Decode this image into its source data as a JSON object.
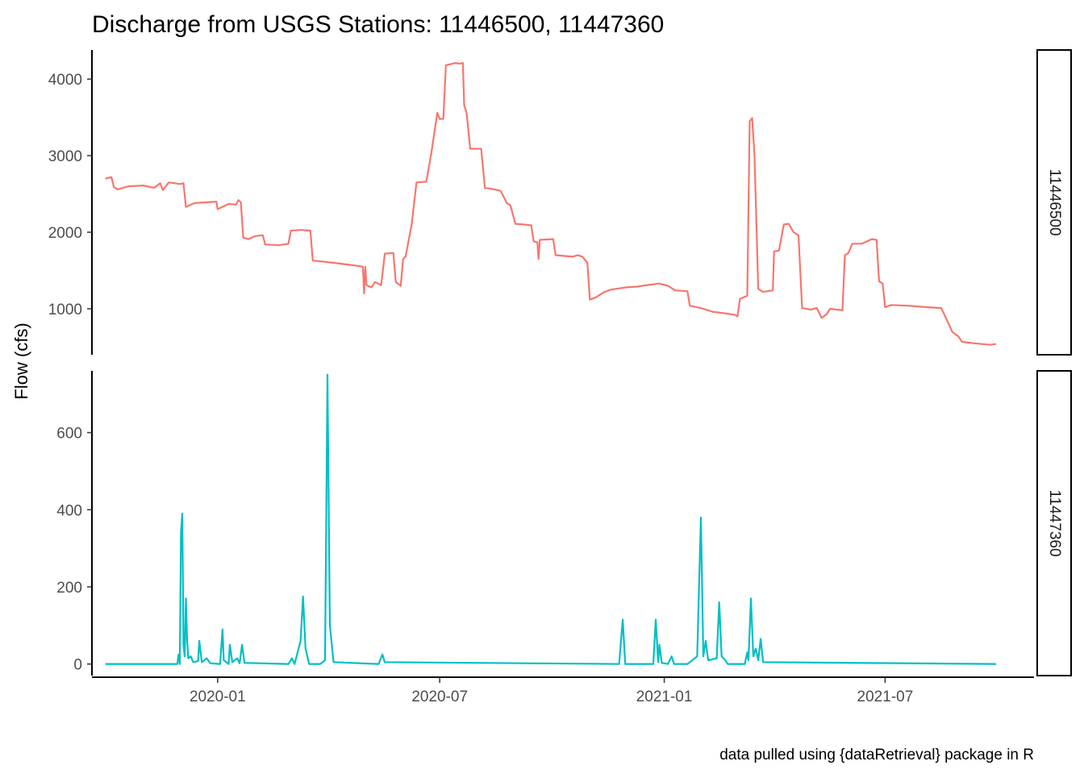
{
  "chart_data": {
    "type": "line",
    "title": "Discharge from USGS Stations: 11446500, 11447360",
    "ylabel": "Flow (cfs)",
    "xlabel": "",
    "caption": "data pulled using {dataRetrieval} package in R",
    "grid": false,
    "legend": "none",
    "x_ticks": [
      "2020-01",
      "2020-07",
      "2021-01",
      "2021-07"
    ],
    "x_range": [
      "2019-09-20",
      "2021-10-31"
    ],
    "panels": [
      {
        "strip": "11446500",
        "color": "#F8766D",
        "ylim": [
          400,
          4380
        ],
        "y_ticks": [
          1000,
          2000,
          3000,
          4000
        ],
        "points": [
          [
            "2019-10-01",
            2700
          ],
          [
            "2019-10-06",
            2720
          ],
          [
            "2019-10-08",
            2590
          ],
          [
            "2019-10-11",
            2560
          ],
          [
            "2019-10-20",
            2600
          ],
          [
            "2019-11-01",
            2610
          ],
          [
            "2019-11-10",
            2580
          ],
          [
            "2019-11-15",
            2640
          ],
          [
            "2019-11-17",
            2550
          ],
          [
            "2019-11-22",
            2650
          ],
          [
            "2019-12-01",
            2630
          ],
          [
            "2019-12-04",
            2640
          ],
          [
            "2019-12-06",
            2330
          ],
          [
            "2019-12-13",
            2380
          ],
          [
            "2019-12-22",
            2390
          ],
          [
            "2019-12-31",
            2400
          ],
          [
            "2020-01-01",
            2300
          ],
          [
            "2020-01-10",
            2370
          ],
          [
            "2020-01-16",
            2360
          ],
          [
            "2020-01-18",
            2420
          ],
          [
            "2020-01-20",
            2390
          ],
          [
            "2020-01-22",
            1930
          ],
          [
            "2020-01-26",
            1910
          ],
          [
            "2020-02-01",
            1950
          ],
          [
            "2020-02-07",
            1960
          ],
          [
            "2020-02-09",
            1840
          ],
          [
            "2020-02-20",
            1830
          ],
          [
            "2020-02-28",
            1850
          ],
          [
            "2020-03-01",
            2020
          ],
          [
            "2020-03-10",
            2030
          ],
          [
            "2020-03-17",
            2020
          ],
          [
            "2020-03-19",
            1630
          ],
          [
            "2020-03-25",
            1620
          ],
          [
            "2020-04-05",
            1600
          ],
          [
            "2020-04-15",
            1580
          ],
          [
            "2020-04-25",
            1560
          ],
          [
            "2020-04-29",
            1550
          ],
          [
            "2020-04-30",
            1200
          ],
          [
            "2020-05-01",
            1550
          ],
          [
            "2020-05-02",
            1310
          ],
          [
            "2020-05-06",
            1280
          ],
          [
            "2020-05-09",
            1350
          ],
          [
            "2020-05-14",
            1310
          ],
          [
            "2020-05-17",
            1720
          ],
          [
            "2020-05-24",
            1730
          ],
          [
            "2020-05-26",
            1350
          ],
          [
            "2020-05-30",
            1300
          ],
          [
            "2020-06-01",
            1650
          ],
          [
            "2020-06-03",
            1680
          ],
          [
            "2020-06-08",
            2100
          ],
          [
            "2020-06-12",
            2650
          ],
          [
            "2020-06-20",
            2660
          ],
          [
            "2020-06-24",
            3020
          ],
          [
            "2020-06-29",
            3560
          ],
          [
            "2020-07-01",
            3480
          ],
          [
            "2020-07-04",
            3480
          ],
          [
            "2020-07-06",
            4180
          ],
          [
            "2020-07-14",
            4210
          ],
          [
            "2020-07-17",
            4200
          ],
          [
            "2020-07-20",
            4210
          ],
          [
            "2020-07-21",
            3660
          ],
          [
            "2020-07-23",
            3560
          ],
          [
            "2020-07-26",
            3090
          ],
          [
            "2020-08-04",
            3090
          ],
          [
            "2020-08-07",
            2580
          ],
          [
            "2020-08-15",
            2560
          ],
          [
            "2020-08-20",
            2540
          ],
          [
            "2020-08-25",
            2380
          ],
          [
            "2020-08-28",
            2350
          ],
          [
            "2020-09-01",
            2110
          ],
          [
            "2020-09-08",
            2100
          ],
          [
            "2020-09-14",
            2090
          ],
          [
            "2020-09-16",
            1880
          ],
          [
            "2020-09-19",
            1870
          ],
          [
            "2020-09-20",
            1650
          ],
          [
            "2020-09-21",
            1900
          ],
          [
            "2020-10-02",
            1910
          ],
          [
            "2020-10-04",
            1700
          ],
          [
            "2020-10-18",
            1680
          ],
          [
            "2020-10-22",
            1700
          ],
          [
            "2020-10-26",
            1680
          ],
          [
            "2020-10-30",
            1600
          ],
          [
            "2020-11-01",
            1120
          ],
          [
            "2020-11-06",
            1150
          ],
          [
            "2020-11-13",
            1220
          ],
          [
            "2020-11-18",
            1250
          ],
          [
            "2020-12-01",
            1280
          ],
          [
            "2020-12-10",
            1290
          ],
          [
            "2020-12-18",
            1310
          ],
          [
            "2020-12-28",
            1330
          ],
          [
            "2021-01-04",
            1300
          ],
          [
            "2021-01-10",
            1240
          ],
          [
            "2021-01-20",
            1230
          ],
          [
            "2021-01-22",
            1040
          ],
          [
            "2021-01-31",
            1010
          ],
          [
            "2021-02-10",
            960
          ],
          [
            "2021-02-20",
            940
          ],
          [
            "2021-02-28",
            920
          ],
          [
            "2021-03-02",
            900
          ],
          [
            "2021-03-04",
            1130
          ],
          [
            "2021-03-10",
            1170
          ],
          [
            "2021-03-12",
            3450
          ],
          [
            "2021-03-14",
            3490
          ],
          [
            "2021-03-16",
            3000
          ],
          [
            "2021-03-19",
            1260
          ],
          [
            "2021-03-23",
            1220
          ],
          [
            "2021-03-31",
            1240
          ],
          [
            "2021-04-01",
            1750
          ],
          [
            "2021-04-05",
            1760
          ],
          [
            "2021-04-09",
            2100
          ],
          [
            "2021-04-13",
            2110
          ],
          [
            "2021-04-17",
            2000
          ],
          [
            "2021-04-21",
            1960
          ],
          [
            "2021-04-24",
            1010
          ],
          [
            "2021-05-01",
            990
          ],
          [
            "2021-05-06",
            1010
          ],
          [
            "2021-05-10",
            880
          ],
          [
            "2021-05-14",
            930
          ],
          [
            "2021-05-17",
            1000
          ],
          [
            "2021-05-27",
            980
          ],
          [
            "2021-05-29",
            1700
          ],
          [
            "2021-06-01",
            1730
          ],
          [
            "2021-06-04",
            1850
          ],
          [
            "2021-06-12",
            1850
          ],
          [
            "2021-06-20",
            1910
          ],
          [
            "2021-06-24",
            1900
          ],
          [
            "2021-06-26",
            1360
          ],
          [
            "2021-06-29",
            1330
          ],
          [
            "2021-07-01",
            1020
          ],
          [
            "2021-07-06",
            1050
          ],
          [
            "2021-07-20",
            1040
          ],
          [
            "2021-08-05",
            1020
          ],
          [
            "2021-08-16",
            1010
          ],
          [
            "2021-08-21",
            840
          ],
          [
            "2021-08-25",
            700
          ],
          [
            "2021-08-30",
            640
          ],
          [
            "2021-09-02",
            570
          ],
          [
            "2021-09-12",
            550
          ],
          [
            "2021-09-25",
            530
          ],
          [
            "2021-09-30",
            540
          ]
        ]
      },
      {
        "strip": "11447360",
        "color": "#00BFC4",
        "ylim": [
          -30,
          760
        ],
        "y_ticks": [
          0,
          200,
          400,
          600
        ],
        "points": [
          [
            "2019-10-01",
            0
          ],
          [
            "2019-11-29",
            0
          ],
          [
            "2019-11-30",
            25
          ],
          [
            "2019-12-01",
            0
          ],
          [
            "2019-12-02",
            340
          ],
          [
            "2019-12-03",
            390
          ],
          [
            "2019-12-04",
            50
          ],
          [
            "2019-12-05",
            20
          ],
          [
            "2019-12-06",
            170
          ],
          [
            "2019-12-07",
            60
          ],
          [
            "2019-12-08",
            15
          ],
          [
            "2019-12-10",
            20
          ],
          [
            "2019-12-12",
            5
          ],
          [
            "2019-12-16",
            8
          ],
          [
            "2019-12-17",
            60
          ],
          [
            "2019-12-19",
            5
          ],
          [
            "2019-12-23",
            15
          ],
          [
            "2019-12-26",
            2
          ],
          [
            "2020-01-03",
            0
          ],
          [
            "2020-01-05",
            90
          ],
          [
            "2020-01-06",
            10
          ],
          [
            "2020-01-10",
            0
          ],
          [
            "2020-01-11",
            50
          ],
          [
            "2020-01-13",
            5
          ],
          [
            "2020-01-17",
            15
          ],
          [
            "2020-01-19",
            2
          ],
          [
            "2020-01-21",
            50
          ],
          [
            "2020-01-23",
            3
          ],
          [
            "2020-02-28",
            0
          ],
          [
            "2020-03-02",
            15
          ],
          [
            "2020-03-04",
            0
          ],
          [
            "2020-03-09",
            60
          ],
          [
            "2020-03-11",
            175
          ],
          [
            "2020-03-13",
            40
          ],
          [
            "2020-03-16",
            0
          ],
          [
            "2020-03-25",
            0
          ],
          [
            "2020-03-29",
            10
          ],
          [
            "2020-03-31",
            750
          ],
          [
            "2020-04-02",
            100
          ],
          [
            "2020-04-05",
            5
          ],
          [
            "2020-05-12",
            0
          ],
          [
            "2020-05-15",
            25
          ],
          [
            "2020-05-17",
            5
          ],
          [
            "2020-11-25",
            0
          ],
          [
            "2020-11-28",
            115
          ],
          [
            "2020-11-30",
            0
          ],
          [
            "2020-12-23",
            0
          ],
          [
            "2020-12-25",
            115
          ],
          [
            "2020-12-27",
            5
          ],
          [
            "2020-12-28",
            50
          ],
          [
            "2020-12-30",
            3
          ],
          [
            "2021-01-04",
            0
          ],
          [
            "2021-01-07",
            20
          ],
          [
            "2021-01-09",
            0
          ],
          [
            "2021-01-20",
            0
          ],
          [
            "2021-01-26",
            15
          ],
          [
            "2021-01-28",
            20
          ],
          [
            "2021-01-31",
            380
          ],
          [
            "2021-02-02",
            20
          ],
          [
            "2021-02-04",
            60
          ],
          [
            "2021-02-06",
            10
          ],
          [
            "2021-02-13",
            15
          ],
          [
            "2021-02-15",
            160
          ],
          [
            "2021-02-17",
            20
          ],
          [
            "2021-02-20",
            10
          ],
          [
            "2021-02-22",
            0
          ],
          [
            "2021-03-08",
            0
          ],
          [
            "2021-03-10",
            30
          ],
          [
            "2021-03-11",
            10
          ],
          [
            "2021-03-13",
            170
          ],
          [
            "2021-03-15",
            20
          ],
          [
            "2021-03-17",
            40
          ],
          [
            "2021-03-19",
            10
          ],
          [
            "2021-03-21",
            65
          ],
          [
            "2021-03-23",
            5
          ],
          [
            "2021-09-30",
            0
          ]
        ]
      }
    ]
  }
}
